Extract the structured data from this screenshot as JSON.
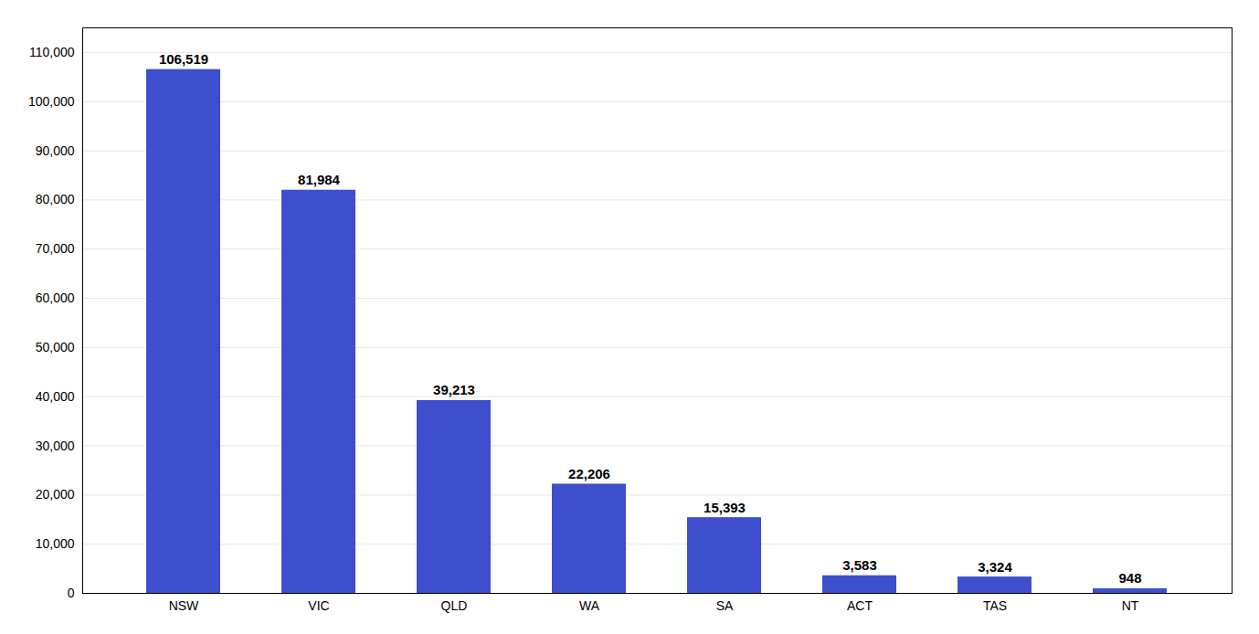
{
  "chart_data": {
    "type": "bar",
    "categories": [
      "NSW",
      "VIC",
      "QLD",
      "WA",
      "SA",
      "ACT",
      "TAS",
      "NT"
    ],
    "values": [
      106519,
      81984,
      39213,
      22206,
      15393,
      3583,
      3324,
      948
    ],
    "value_labels": [
      "106,519",
      "81,984",
      "39,213",
      "22,206",
      "15,393",
      "3,583",
      "3,324",
      "948"
    ],
    "data_labels": true,
    "color": "#3d4fcc",
    "ylim": [
      0,
      115000
    ],
    "yticks": [
      0,
      {
        "value": 10000,
        "label": "10,000"
      },
      {
        "value": 20000,
        "label": "20,000"
      },
      {
        "value": 30000,
        "label": "30,000"
      },
      {
        "value": 40000,
        "label": "40,000"
      },
      {
        "value": 50000,
        "label": "50,000"
      },
      {
        "value": 60000,
        "label": "60,000"
      },
      {
        "value": 70000,
        "label": "70,000"
      },
      {
        "value": 80000,
        "label": "80,000"
      },
      {
        "value": 90000,
        "label": "90,000"
      },
      {
        "value": 100000,
        "label": "100,000"
      },
      {
        "value": 110000,
        "label": "110,000"
      }
    ],
    "grid": true
  }
}
